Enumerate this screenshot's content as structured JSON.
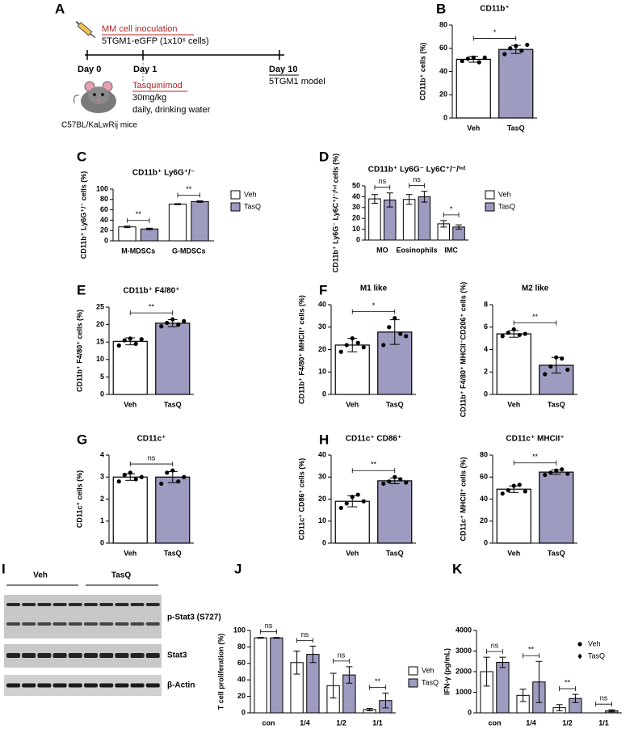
{
  "panel_letters": [
    "A",
    "B",
    "C",
    "D",
    "E",
    "F",
    "G",
    "H",
    "I",
    "J",
    "K"
  ],
  "diagram": {
    "inoculation": "MM cell inoculation",
    "cells": "5TGM1-eGFP (1x10⁶ cells)",
    "day0": "Day 0",
    "day1": "Day 1",
    "day10": "Day 10",
    "model": "5TGM1 model",
    "drug": "Tasquinimod",
    "dose": "30mg/kg",
    "schedule": "daily, drinking water",
    "mice": "C57BL/KaLwRij mice"
  },
  "blot": {
    "groups": [
      "Veh",
      "TasQ"
    ],
    "rows": [
      "p-Stat3 (S727)",
      "Stat3",
      "β-Actin"
    ]
  },
  "chart_data": [
    {
      "type": "bar",
      "title": "CD11b⁺",
      "ylabel": "CD11b⁺ cells (%)",
      "categories": [
        "Veh",
        "TasQ"
      ],
      "values": [
        50.5,
        59
      ],
      "errors": [
        2.5,
        3.5
      ],
      "points": [
        [
          49,
          51,
          52,
          48,
          52
        ],
        [
          55,
          60,
          62,
          58,
          63
        ]
      ],
      "colors": [
        "#ffffff",
        "#9d9bc0"
      ],
      "ylim": [
        0,
        80
      ],
      "yticks": [
        0,
        20,
        40,
        60,
        80
      ],
      "significance": [
        "*"
      ]
    },
    {
      "type": "grouped-bar",
      "title": "CD11b⁺ Ly6G⁺/⁻",
      "ylabel": "CD11b⁺ Ly6G⁺/⁻ cells (%)",
      "categories": [
        "M-MDSCs",
        "G-MDSCs"
      ],
      "series": [
        {
          "name": "Veh",
          "color": "#ffffff",
          "values": [
            27,
            71
          ],
          "errors": [
            1.5,
            1
          ]
        },
        {
          "name": "TasQ",
          "color": "#9d9bc0",
          "values": [
            23,
            76
          ],
          "errors": [
            1.5,
            1.5
          ]
        }
      ],
      "ylim": [
        0,
        100
      ],
      "yticks": [
        0,
        20,
        40,
        60,
        80,
        100
      ],
      "significance": [
        "**",
        "**"
      ]
    },
    {
      "type": "grouped-bar",
      "title": "CD11b⁺ Ly6G⁻ Ly6C⁺/⁻/ⁱⁿᵗ",
      "ylabel": "CD11b⁺ Ly6G⁻ Ly6C⁺/⁻/ⁱⁿᵗ cells (%)",
      "categories": [
        "MO",
        "Eosinophils",
        "IMC"
      ],
      "series": [
        {
          "name": "Veh",
          "color": "#ffffff",
          "values": [
            38,
            37.5,
            15
          ],
          "errors": [
            4,
            4.5,
            3
          ]
        },
        {
          "name": "TasQ",
          "color": "#9d9bc0",
          "values": [
            37,
            40,
            12
          ],
          "errors": [
            6.5,
            5,
            2
          ]
        }
      ],
      "ylim": [
        0,
        50
      ],
      "yticks": [
        0,
        10,
        20,
        30,
        40,
        50
      ],
      "significance": [
        "ns",
        "ns",
        "*"
      ]
    },
    {
      "type": "bar",
      "title": "CD11b⁺ F4/80⁺",
      "ylabel": "CD11b⁺ F4/80⁺ cells (%)",
      "categories": [
        "Veh",
        "TasQ"
      ],
      "values": [
        15.2,
        20.4
      ],
      "errors": [
        1,
        1
      ],
      "points": [
        [
          14,
          15.5,
          16,
          14.5,
          15.8
        ],
        [
          19.5,
          20.5,
          21.5,
          20,
          21
        ]
      ],
      "colors": [
        "#ffffff",
        "#9d9bc0"
      ],
      "ylim": [
        0,
        25
      ],
      "yticks": [
        0,
        5,
        10,
        15,
        20,
        25
      ],
      "significance": [
        "**"
      ]
    },
    {
      "type": "bar",
      "title": "M1 like",
      "ylabel": "CD11b⁺ F4/80⁺ MHCII⁺ cells (%)",
      "categories": [
        "Veh",
        "TasQ"
      ],
      "values": [
        22,
        27.8
      ],
      "errors": [
        3,
        5.5
      ],
      "points": [
        [
          19,
          22,
          25,
          23,
          21
        ],
        [
          22,
          30,
          34,
          27,
          26
        ]
      ],
      "colors": [
        "#ffffff",
        "#9d9bc0"
      ],
      "ylim": [
        0,
        40
      ],
      "yticks": [
        0,
        10,
        20,
        30,
        40
      ],
      "significance": [
        "*"
      ]
    },
    {
      "type": "bar",
      "title": "M2 like",
      "ylabel": "CD11b⁺ F4/80⁺ MHCII⁻CD206⁺ cells (%)",
      "categories": [
        "Veh",
        "TasQ"
      ],
      "values": [
        5.4,
        2.6
      ],
      "errors": [
        0.3,
        0.7
      ],
      "points": [
        [
          5.2,
          5.5,
          5.8,
          5.3,
          5.4
        ],
        [
          1.8,
          2.5,
          3.3,
          3.2,
          2.2
        ]
      ],
      "colors": [
        "#ffffff",
        "#9d9bc0"
      ],
      "ylim": [
        0,
        8
      ],
      "yticks": [
        0,
        2,
        4,
        6,
        8
      ],
      "significance": [
        "**"
      ]
    },
    {
      "type": "bar",
      "title": "CD11c⁺",
      "ylabel": "CD11c⁺ cells (%)",
      "categories": [
        "Veh",
        "TasQ"
      ],
      "values": [
        3.0,
        3.0
      ],
      "errors": [
        0.15,
        0.25
      ],
      "points": [
        [
          2.8,
          3.1,
          3.2,
          2.9,
          3.0
        ],
        [
          2.7,
          3.2,
          3.3,
          2.8,
          3.0
        ]
      ],
      "colors": [
        "#ffffff",
        "#9d9bc0"
      ],
      "ylim": [
        0,
        4
      ],
      "yticks": [
        0,
        1,
        2,
        3,
        4
      ],
      "significance": [
        "ns"
      ]
    },
    {
      "type": "bar",
      "title": "CD11c⁺ CD86⁺",
      "ylabel": "CD11c⁺ CD86⁺ cells (%)",
      "categories": [
        "Veh",
        "TasQ"
      ],
      "values": [
        19,
        28.3
      ],
      "errors": [
        2.5,
        1.3
      ],
      "points": [
        [
          16,
          18,
          21,
          22,
          19
        ],
        [
          27,
          28,
          30,
          29,
          27.5
        ]
      ],
      "colors": [
        "#ffffff",
        "#9d9bc0"
      ],
      "ylim": [
        0,
        40
      ],
      "yticks": [
        0,
        10,
        20,
        30,
        40
      ],
      "significance": [
        "**"
      ]
    },
    {
      "type": "bar",
      "title": "CD11c⁺ MHCII⁺",
      "ylabel": "CD11c⁺ MHCII⁺ cells (%)",
      "categories": [
        "Veh",
        "TasQ"
      ],
      "values": [
        49,
        64.5
      ],
      "errors": [
        3,
        2
      ],
      "points": [
        [
          45,
          48,
          52,
          53,
          47
        ],
        [
          62,
          64,
          66,
          67,
          63
        ]
      ],
      "colors": [
        "#ffffff",
        "#9d9bc0"
      ],
      "ylim": [
        0,
        80
      ],
      "yticks": [
        0,
        20,
        40,
        60,
        80
      ],
      "significance": [
        "**"
      ]
    },
    {
      "type": "grouped-bar",
      "ylabel": "T cell proliferation (%)",
      "categories": [
        "con",
        "1/4",
        "1/2",
        "1/1"
      ],
      "series": [
        {
          "name": "Veh",
          "color": "#ffffff",
          "values": [
            91,
            61,
            33,
            4
          ],
          "errors": [
            0.5,
            14,
            15,
            1.5
          ]
        },
        {
          "name": "TasQ",
          "color": "#9d9bc0",
          "values": [
            91,
            71,
            46,
            15
          ],
          "errors": [
            0.5,
            10,
            10,
            9
          ]
        }
      ],
      "ylim": [
        0,
        100
      ],
      "yticks": [
        0,
        20,
        40,
        60,
        80,
        100
      ],
      "significance": [
        "ns",
        "ns",
        "ns",
        "**"
      ]
    },
    {
      "type": "grouped-bar",
      "ylabel": "IFN-γ (pg/mL)",
      "categories": [
        "con",
        "1/4",
        "1/2",
        "1/1"
      ],
      "series": [
        {
          "name": "Veh",
          "color": "#ffffff",
          "marker": "circle",
          "values": [
            2000,
            850,
            250,
            0
          ],
          "errors": [
            700,
            300,
            150,
            0
          ]
        },
        {
          "name": "TasQ",
          "color": "#9d9bc0",
          "marker": "diamond",
          "values": [
            2450,
            1500,
            700,
            100
          ],
          "errors": [
            250,
            1000,
            200,
            50
          ]
        }
      ],
      "ylim": [
        0,
        4000
      ],
      "yticks": [
        0,
        1000,
        2000,
        3000,
        4000
      ],
      "significance": [
        "ns",
        "**",
        "**",
        "ns"
      ]
    }
  ]
}
